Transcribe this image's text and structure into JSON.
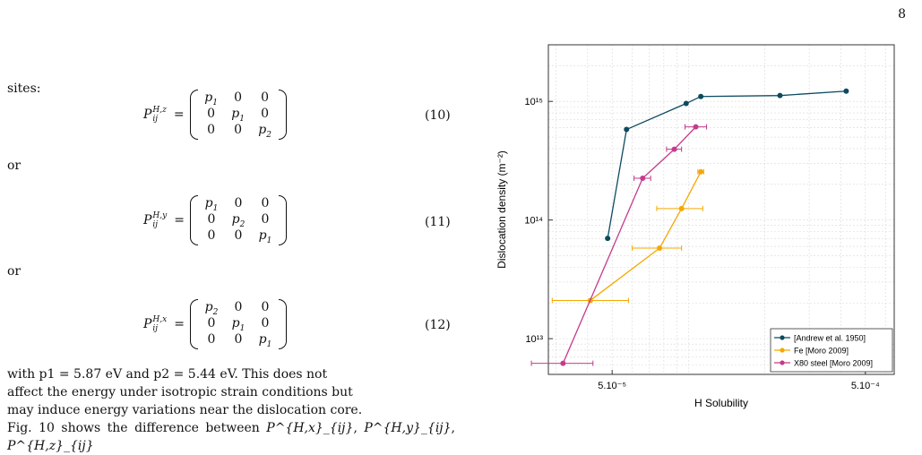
{
  "page_number": "8",
  "intro_text": "sites:",
  "or_1": "or",
  "or_2": "or",
  "equations": [
    {
      "lhs_base": "P",
      "lhs_sup": "H,z",
      "lhs_sub": "ij",
      "equals": "=",
      "matrix": [
        [
          "p1",
          "0",
          "0"
        ],
        [
          "0",
          "p1",
          "0"
        ],
        [
          "0",
          "0",
          "p2"
        ]
      ],
      "number": "(10)"
    },
    {
      "lhs_base": "P",
      "lhs_sup": "H,y",
      "lhs_sub": "ij",
      "equals": "=",
      "matrix": [
        [
          "p1",
          "0",
          "0"
        ],
        [
          "0",
          "p2",
          "0"
        ],
        [
          "0",
          "0",
          "p1"
        ]
      ],
      "number": "(11)"
    },
    {
      "lhs_base": "P",
      "lhs_sup": "H,x",
      "lhs_sub": "ij",
      "equals": "=",
      "matrix": [
        [
          "p2",
          "0",
          "0"
        ],
        [
          "0",
          "p1",
          "0"
        ],
        [
          "0",
          "0",
          "p1"
        ]
      ],
      "number": "(12)"
    }
  ],
  "paragraph": {
    "line1": "with p1 = 5.87 eV and p2 = 5.44 eV. This does not",
    "line2": "affect the energy under isotropic strain conditions but",
    "line3": "may induce energy variations near the dislocation core.",
    "line4_start": "Fig. 10 shows the difference between",
    "line4_terms": [
      "P^{H,x}_{ij}",
      "P^{H,y}_{ij}",
      "P^{H,z}_{ij}"
    ]
  },
  "chart_data": {
    "type": "line",
    "xlabel": "H Solubility",
    "ylabel": "Dislocation density (m⁻²)",
    "x_scale": "log",
    "y_scale": "log",
    "xlim": [
      2.8e-05,
      0.00065
    ],
    "ylim": [
      5000000000000.0,
      3000000000000000.0
    ],
    "x_ticks": [
      {
        "value": 5e-05,
        "label": "5.10⁻⁵"
      },
      {
        "value": 0.0005,
        "label": "5.10⁻⁴"
      }
    ],
    "y_ticks": [
      {
        "value": 10000000000000.0,
        "label": "10¹³"
      },
      {
        "value": 100000000000000.0,
        "label": "10¹⁴"
      },
      {
        "value": 1000000000000000.0,
        "label": "10¹⁵"
      }
    ],
    "grid": true,
    "legend_position": "bottom-right",
    "series": [
      {
        "name": "[Andrew et al. 1950]",
        "color": "#0d4a5f",
        "marker": "circle",
        "x": [
          4.8e-05,
          5.7e-05,
          9.8e-05,
          0.000112,
          0.00023,
          0.00042
        ],
        "y": [
          70000000000000.0,
          580000000000000.0,
          960000000000000.0,
          1100000000000000.0,
          1120000000000000.0,
          1220000000000000.0
        ]
      },
      {
        "name": "Fe [Moro 2009]",
        "color": "#f5a700",
        "marker": "circle",
        "x": [
          4.1e-05,
          7.7e-05,
          9.4e-05,
          0.000112
        ],
        "y": [
          21000000000000.0,
          58000000000000.0,
          125000000000000.0,
          255000000000000.0
        ],
        "xerr_low": [
          2.9e-05,
          6e-05,
          7.5e-05,
          0.000109
        ],
        "xerr_high": [
          5.8e-05,
          9.4e-05,
          0.000114,
          0.000115
        ]
      },
      {
        "name": "X80 steel [Moro 2009]",
        "color": "#c43b8d",
        "marker": "circle",
        "x": [
          3.2e-05,
          6.6e-05,
          8.8e-05,
          0.000107
        ],
        "y": [
          6200000000000.0,
          225000000000000.0,
          395000000000000.0,
          610000000000000.0
        ],
        "xerr_low": [
          2.4e-05,
          6.1e-05,
          8.2e-05,
          9.7e-05
        ],
        "xerr_high": [
          4.2e-05,
          7.1e-05,
          9.4e-05,
          0.000118
        ]
      }
    ]
  }
}
